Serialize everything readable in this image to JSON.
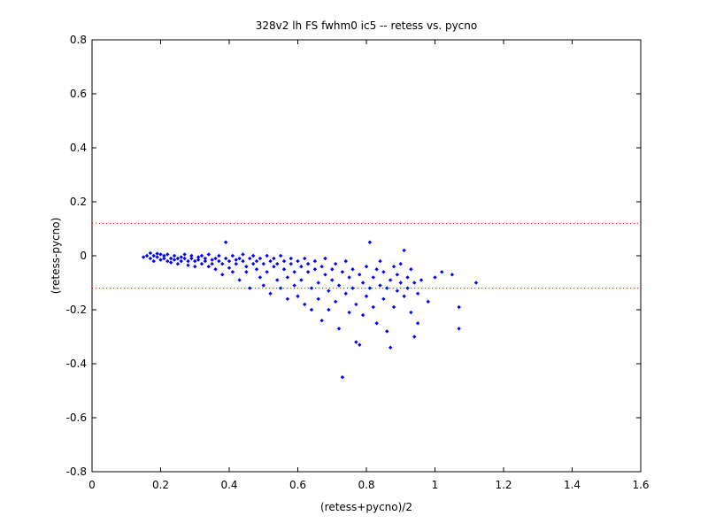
{
  "chart_data": {
    "type": "scatter",
    "title": "328v2 lh FS fwhm0 ic5 -- retess vs. pycno",
    "xlabel": "(retess+pycno)/2",
    "ylabel": "(retess-pycno)",
    "xlim": [
      0,
      1.6
    ],
    "ylim": [
      -0.8,
      0.8
    ],
    "xticks": [
      0,
      0.2,
      0.4,
      0.6,
      0.8,
      1,
      1.2,
      1.4,
      1.6
    ],
    "yticks": [
      -0.8,
      -0.6,
      -0.4,
      -0.2,
      0,
      0.2,
      0.4,
      0.6,
      0.8
    ],
    "xtick_labels": [
      "0",
      "0.2",
      "0.4",
      "0.6",
      "0.8",
      "1",
      "1.2",
      "1.4",
      "1.6"
    ],
    "ytick_labels": [
      "-0.8",
      "-0.6",
      "-0.4",
      "-0.2",
      "0",
      "0.2",
      "0.4",
      "0.6",
      "0.8"
    ],
    "grid": false,
    "point_color": "#0000ff",
    "reference_line_color": "#ff0000",
    "reference_lines": [
      0.12,
      -0.12
    ],
    "points": [
      [
        0.15,
        -0.005
      ],
      [
        0.16,
        0.0
      ],
      [
        0.17,
        -0.01
      ],
      [
        0.17,
        0.01
      ],
      [
        0.18,
        -0.02
      ],
      [
        0.18,
        0.0
      ],
      [
        0.19,
        -0.005
      ],
      [
        0.19,
        0.008
      ],
      [
        0.2,
        -0.015
      ],
      [
        0.2,
        0.005
      ],
      [
        0.21,
        -0.01
      ],
      [
        0.21,
        0.0
      ],
      [
        0.22,
        -0.02
      ],
      [
        0.22,
        0.005
      ],
      [
        0.23,
        -0.01
      ],
      [
        0.23,
        -0.025
      ],
      [
        0.24,
        0.0
      ],
      [
        0.24,
        -0.015
      ],
      [
        0.25,
        -0.01
      ],
      [
        0.25,
        -0.03
      ],
      [
        0.26,
        -0.005
      ],
      [
        0.26,
        -0.02
      ],
      [
        0.27,
        -0.01
      ],
      [
        0.27,
        0.005
      ],
      [
        0.28,
        -0.02
      ],
      [
        0.28,
        -0.035
      ],
      [
        0.29,
        -0.01
      ],
      [
        0.29,
        0.0
      ],
      [
        0.3,
        -0.02
      ],
      [
        0.3,
        -0.04
      ],
      [
        0.31,
        -0.005
      ],
      [
        0.31,
        -0.015
      ],
      [
        0.32,
        -0.03
      ],
      [
        0.32,
        0.0
      ],
      [
        0.33,
        -0.02
      ],
      [
        0.33,
        -0.01
      ],
      [
        0.34,
        -0.04
      ],
      [
        0.34,
        0.005
      ],
      [
        0.35,
        -0.015
      ],
      [
        0.35,
        -0.03
      ],
      [
        0.36,
        -0.01
      ],
      [
        0.36,
        -0.05
      ],
      [
        0.37,
        -0.02
      ],
      [
        0.37,
        0.0
      ],
      [
        0.38,
        -0.03
      ],
      [
        0.38,
        -0.07
      ],
      [
        0.39,
        -0.01
      ],
      [
        0.39,
        0.05
      ],
      [
        0.4,
        -0.02
      ],
      [
        0.4,
        -0.045
      ],
      [
        0.41,
        0.0
      ],
      [
        0.41,
        -0.06
      ],
      [
        0.42,
        -0.015
      ],
      [
        0.42,
        -0.03
      ],
      [
        0.43,
        -0.01
      ],
      [
        0.43,
        -0.09
      ],
      [
        0.44,
        -0.02
      ],
      [
        0.44,
        0.005
      ],
      [
        0.45,
        -0.04
      ],
      [
        0.45,
        -0.06
      ],
      [
        0.46,
        -0.01
      ],
      [
        0.46,
        -0.12
      ],
      [
        0.47,
        -0.03
      ],
      [
        0.47,
        0.0
      ],
      [
        0.48,
        -0.05
      ],
      [
        0.48,
        -0.02
      ],
      [
        0.49,
        -0.08
      ],
      [
        0.49,
        -0.01
      ],
      [
        0.5,
        -0.03
      ],
      [
        0.5,
        -0.11
      ],
      [
        0.51,
        0.0
      ],
      [
        0.51,
        -0.06
      ],
      [
        0.52,
        -0.02
      ],
      [
        0.52,
        -0.14
      ],
      [
        0.53,
        -0.04
      ],
      [
        0.53,
        -0.01
      ],
      [
        0.54,
        -0.09
      ],
      [
        0.54,
        -0.03
      ],
      [
        0.55,
        0.0
      ],
      [
        0.55,
        -0.12
      ],
      [
        0.56,
        -0.05
      ],
      [
        0.56,
        -0.02
      ],
      [
        0.57,
        -0.08
      ],
      [
        0.57,
        -0.16
      ],
      [
        0.58,
        -0.03
      ],
      [
        0.58,
        -0.01
      ],
      [
        0.59,
        -0.11
      ],
      [
        0.59,
        -0.06
      ],
      [
        0.6,
        -0.02
      ],
      [
        0.6,
        -0.15
      ],
      [
        0.61,
        -0.04
      ],
      [
        0.61,
        -0.09
      ],
      [
        0.62,
        -0.01
      ],
      [
        0.62,
        -0.18
      ],
      [
        0.63,
        -0.06
      ],
      [
        0.63,
        -0.03
      ],
      [
        0.64,
        -0.12
      ],
      [
        0.64,
        -0.2
      ],
      [
        0.65,
        -0.05
      ],
      [
        0.65,
        -0.02
      ],
      [
        0.66,
        -0.1
      ],
      [
        0.66,
        -0.16
      ],
      [
        0.67,
        -0.04
      ],
      [
        0.67,
        -0.24
      ],
      [
        0.68,
        -0.07
      ],
      [
        0.68,
        -0.01
      ],
      [
        0.69,
        -0.13
      ],
      [
        0.69,
        -0.2
      ],
      [
        0.7,
        -0.05
      ],
      [
        0.7,
        -0.09
      ],
      [
        0.71,
        -0.03
      ],
      [
        0.71,
        -0.17
      ],
      [
        0.72,
        -0.11
      ],
      [
        0.72,
        -0.27
      ],
      [
        0.73,
        -0.06
      ],
      [
        0.73,
        -0.45
      ],
      [
        0.74,
        -0.14
      ],
      [
        0.74,
        -0.02
      ],
      [
        0.75,
        -0.08
      ],
      [
        0.75,
        -0.21
      ],
      [
        0.76,
        -0.05
      ],
      [
        0.76,
        -0.12
      ],
      [
        0.77,
        -0.18
      ],
      [
        0.77,
        -0.32
      ],
      [
        0.78,
        -0.07
      ],
      [
        0.78,
        -0.33
      ],
      [
        0.79,
        -0.1
      ],
      [
        0.79,
        -0.22
      ],
      [
        0.8,
        -0.04
      ],
      [
        0.8,
        -0.15
      ],
      [
        0.81,
        -0.12
      ],
      [
        0.81,
        0.05
      ],
      [
        0.82,
        -0.08
      ],
      [
        0.82,
        -0.19
      ],
      [
        0.83,
        -0.05
      ],
      [
        0.83,
        -0.25
      ],
      [
        0.84,
        -0.11
      ],
      [
        0.84,
        -0.02
      ],
      [
        0.85,
        -0.16
      ],
      [
        0.85,
        -0.06
      ],
      [
        0.86,
        -0.12
      ],
      [
        0.86,
        -0.28
      ],
      [
        0.87,
        -0.09
      ],
      [
        0.87,
        -0.34
      ],
      [
        0.88,
        -0.04
      ],
      [
        0.88,
        -0.19
      ],
      [
        0.89,
        -0.13
      ],
      [
        0.89,
        -0.07
      ],
      [
        0.9,
        -0.1
      ],
      [
        0.9,
        -0.03
      ],
      [
        0.91,
        0.02
      ],
      [
        0.91,
        -0.15
      ],
      [
        0.92,
        -0.08
      ],
      [
        0.92,
        -0.12
      ],
      [
        0.93,
        -0.21
      ],
      [
        0.93,
        -0.05
      ],
      [
        0.94,
        -0.1
      ],
      [
        0.94,
        -0.3
      ],
      [
        0.95,
        -0.25
      ],
      [
        0.95,
        -0.14
      ],
      [
        0.96,
        -0.09
      ],
      [
        0.98,
        -0.17
      ],
      [
        1.0,
        -0.08
      ],
      [
        1.02,
        -0.06
      ],
      [
        1.05,
        -0.07
      ],
      [
        1.07,
        -0.19
      ],
      [
        1.07,
        -0.27
      ],
      [
        1.12,
        -0.1
      ]
    ]
  }
}
